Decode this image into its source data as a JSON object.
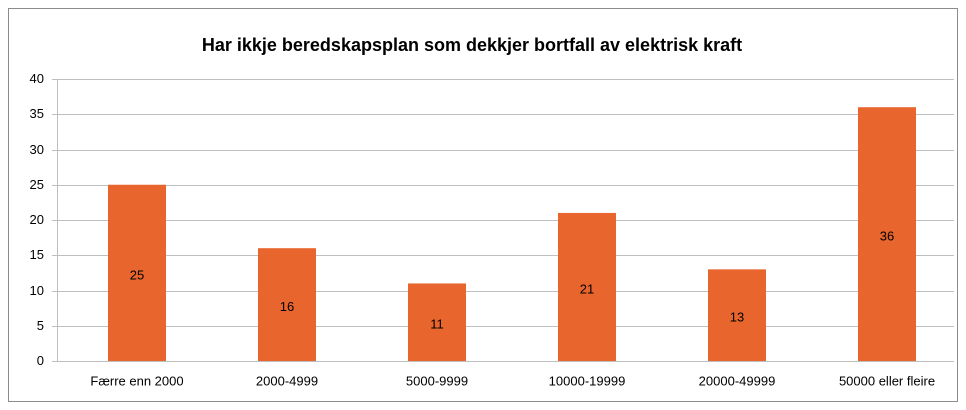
{
  "chart_data": {
    "type": "bar",
    "title": "Har ikkje beredskapsplan som dekkjer bortfall av elektrisk kraft",
    "categories": [
      "Færre enn 2000",
      "2000-4999",
      "5000-9999",
      "10000-19999",
      "20000-49999",
      "50000 eller fleire"
    ],
    "values": [
      25,
      16,
      11,
      21,
      13,
      36
    ],
    "color": "#e8652e",
    "ylim": [
      0,
      40
    ],
    "yticks": [
      0,
      5,
      10,
      15,
      20,
      25,
      30,
      35,
      40
    ],
    "grid": true,
    "data_labels": true
  }
}
